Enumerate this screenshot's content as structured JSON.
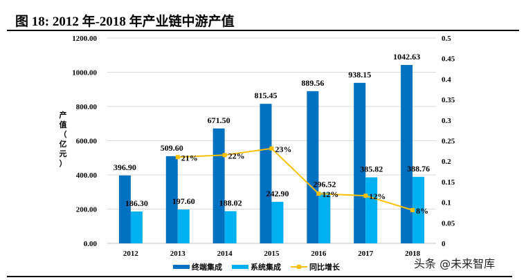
{
  "title": "图  18:  2012 年-2018 年产业链中游产值",
  "watermark": "头条 @未来智库",
  "chart_data": {
    "type": "bar",
    "title": "",
    "ylabel": "产值（亿元）",
    "categories": [
      "2012",
      "2013",
      "2014",
      "2015",
      "2016",
      "2017",
      "2018"
    ],
    "ylim": [
      0,
      1200
    ],
    "yticks": [
      "0.00",
      "200.00",
      "400.00",
      "600.00",
      "800.00",
      "1000.00",
      "1200.00"
    ],
    "y2lim": [
      0,
      0.5
    ],
    "y2ticks": [
      "0",
      "0.05",
      "0.1",
      "0.15",
      "0.2",
      "0.25",
      "0.3",
      "0.35",
      "0.4",
      "0.45",
      "0.5"
    ],
    "grid": true,
    "legend_placement": "bottom",
    "series": [
      {
        "name": "终端集成",
        "type": "bar",
        "axis": "left",
        "color": "#0070C0",
        "values": [
          396.9,
          509.6,
          671.5,
          815.45,
          889.56,
          938.15,
          1042.63
        ],
        "labels": [
          "396.90",
          "509.60",
          "671.50",
          "815.45",
          "889.56",
          "938.15",
          "1042.63"
        ]
      },
      {
        "name": "系统集成",
        "type": "bar",
        "axis": "left",
        "color": "#00B0F0",
        "values": [
          186.3,
          197.6,
          188.02,
          242.9,
          296.52,
          385.82,
          388.76
        ],
        "labels": [
          "186.30",
          "197.60",
          "188.02",
          "242.90",
          "296.52",
          "385.82",
          "388.76"
        ]
      },
      {
        "name": "同比增长",
        "type": "line",
        "axis": "right",
        "color": "#FFC000",
        "values": [
          null,
          0.21,
          0.215,
          0.231,
          0.121,
          0.116,
          0.081
        ],
        "labels": [
          null,
          "21%",
          "22%",
          "23%",
          "12%",
          "12%",
          "8%"
        ]
      }
    ]
  }
}
